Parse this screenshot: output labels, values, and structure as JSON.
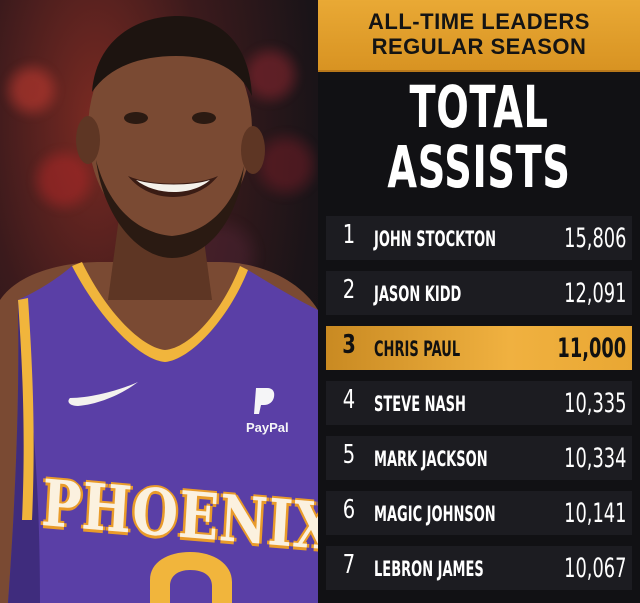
{
  "header": {
    "line1": "ALL-TIME LEADERS",
    "line2": "REGULAR SEASON"
  },
  "title": {
    "line1": "TOTAL",
    "line2": "ASSISTS"
  },
  "photo": {
    "jersey_text": "PHOENIX",
    "sponsor": "PayPal"
  },
  "leaders": [
    {
      "rank": "1",
      "name": "JOHN STOCKTON",
      "value": "15,806"
    },
    {
      "rank": "2",
      "name": "JASON KIDD",
      "value": "12,091"
    },
    {
      "rank": "3",
      "name": "CHRIS PAUL",
      "value": "11,000",
      "highlight": true
    },
    {
      "rank": "4",
      "name": "STEVE NASH",
      "value": "10,335"
    },
    {
      "rank": "5",
      "name": "MARK JACKSON",
      "value": "10,334"
    },
    {
      "rank": "6",
      "name": "MAGIC JOHNSON",
      "value": "10,141"
    },
    {
      "rank": "7",
      "name": "LEBRON JAMES",
      "value": "10,067"
    }
  ],
  "colors": {
    "accent_gold": "#e9a935",
    "jersey_purple": "#5a3fa6",
    "panel_bg": "#111114"
  }
}
